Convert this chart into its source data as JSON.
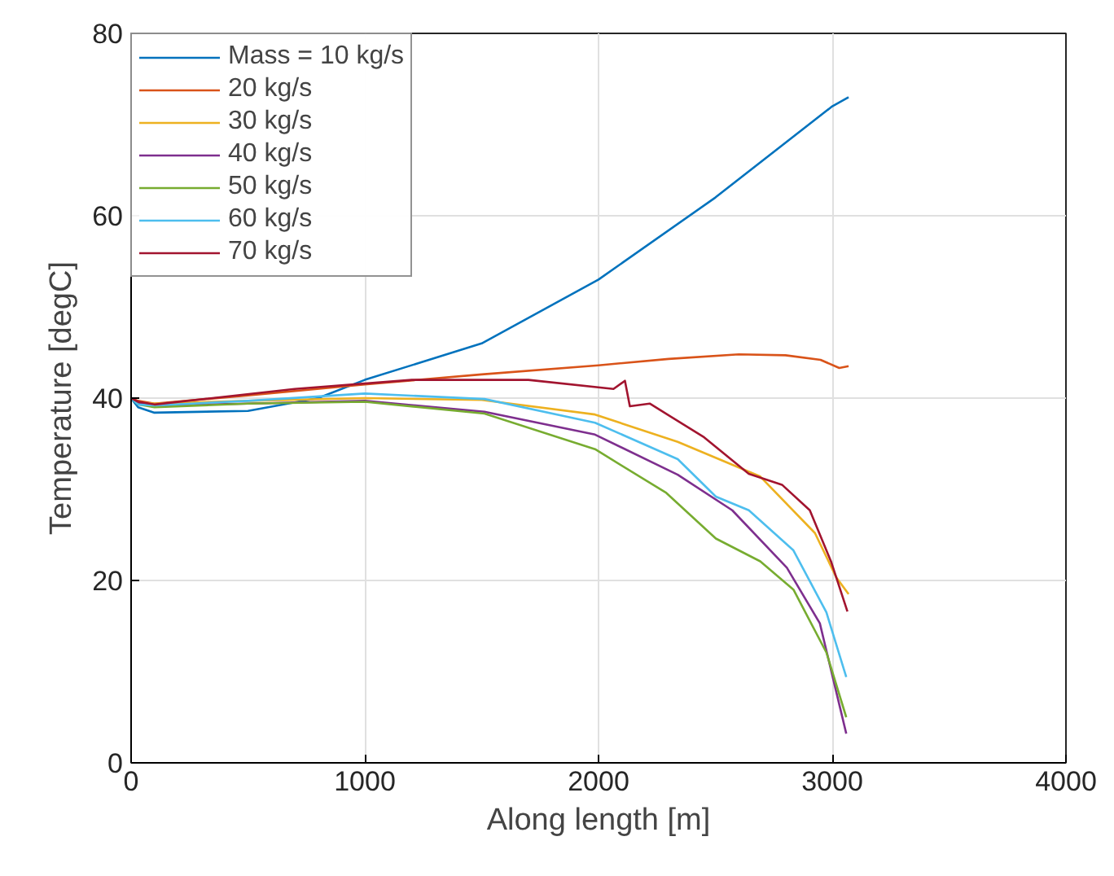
{
  "chart_data": {
    "type": "line",
    "xlabel": "Along length [m]",
    "ylabel": "Temperature [degC]",
    "xlim": [
      0,
      4000
    ],
    "xticks": [
      0,
      1000,
      2000,
      3000,
      4000
    ],
    "ylim": [
      0,
      80
    ],
    "yticks": [
      0,
      20,
      40,
      60,
      80
    ],
    "grid": true,
    "legend": "top left",
    "line_style": "solid",
    "marker": "none",
    "series": [
      {
        "name": "Mass = 10 kg/s",
        "color": "#0072bd",
        "x": [
          0,
          30,
          100,
          500,
          800,
          1000,
          1500,
          2000,
          2500,
          3000,
          3070
        ],
        "values": [
          40,
          39,
          38.4,
          38.6,
          40,
          42,
          46,
          53,
          62,
          72,
          73
        ]
      },
      {
        "name": "20 kg/s",
        "color": "#d95319",
        "x": [
          0,
          30,
          100,
          500,
          1000,
          1500,
          2000,
          2300,
          2600,
          2800,
          2950,
          3030,
          3070
        ],
        "values": [
          40,
          39.7,
          39.4,
          40.3,
          41.5,
          42.6,
          43.6,
          44.3,
          44.8,
          44.7,
          44.2,
          43.3,
          43.5
        ]
      },
      {
        "name": "30 kg/s",
        "color": "#edb120",
        "x": [
          0,
          30,
          100,
          500,
          1000,
          1500,
          1985,
          2339,
          2692,
          2926,
          3018,
          3070
        ],
        "values": [
          40,
          39.5,
          39.4,
          39.7,
          40,
          39.8,
          38.2,
          35.2,
          31.4,
          25.2,
          20.3,
          18.5
        ]
      },
      {
        "name": "40 kg/s",
        "color": "#7e2f8e",
        "x": [
          0,
          30,
          100,
          500,
          1000,
          1512,
          1985,
          2339,
          2572,
          2806,
          2947,
          3060
        ],
        "values": [
          40,
          39.5,
          39.2,
          39.4,
          39.7,
          38.5,
          36,
          31.6,
          27.7,
          21.4,
          15.3,
          3.2
        ]
      },
      {
        "name": "50 kg/s",
        "color": "#77ac30",
        "x": [
          0,
          30,
          100,
          500,
          1000,
          1512,
          1985,
          2290,
          2502,
          2692,
          2834,
          2975,
          3060
        ],
        "values": [
          40,
          39.3,
          39,
          39.4,
          39.6,
          38.3,
          34.4,
          29.6,
          24.6,
          22.1,
          19,
          12.1,
          5
        ]
      },
      {
        "name": "60 kg/s",
        "color": "#4dbeee",
        "x": [
          0,
          30,
          100,
          500,
          1000,
          1512,
          1985,
          2339,
          2502,
          2643,
          2834,
          2975,
          3060
        ],
        "values": [
          40,
          39.3,
          39.2,
          39.7,
          40.5,
          39.9,
          37.3,
          33.3,
          29.2,
          27.7,
          23.3,
          16.5,
          9.4
        ]
      },
      {
        "name": "70 kg/s",
        "color": "#a2142f",
        "x": [
          0,
          30,
          100,
          700,
          1200,
          1700,
          2064,
          2113,
          2134,
          2219,
          2452,
          2643,
          2785,
          2904,
          2996,
          3065
        ],
        "values": [
          40,
          39.6,
          39.3,
          41,
          42,
          42,
          41,
          41.9,
          39.1,
          39.4,
          35.7,
          31.7,
          30.5,
          27.7,
          22,
          16.6
        ]
      }
    ]
  }
}
